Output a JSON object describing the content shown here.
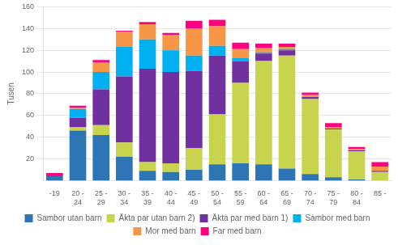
{
  "chart_data": {
    "type": "bar",
    "stacked": true,
    "categories": [
      "-19",
      "20 -\n24",
      "25 -\n29",
      "30 -\n34",
      "35 -\n39",
      "40 -\n44",
      "45 -\n49",
      "50 -\n54",
      "55 -\n59",
      "60 -\n64",
      "65 -\n69",
      "70 -\n74",
      "75 -\n79",
      "80 -\n84",
      "85 -"
    ],
    "series": [
      {
        "name": "Sambor utan barn",
        "color": "#2E75B6",
        "values": [
          4,
          46,
          42,
          22,
          9,
          8,
          10,
          15,
          16,
          15,
          11,
          6,
          3,
          1,
          0
        ]
      },
      {
        "name": "Äkta par utan barn 2)",
        "color": "#C9D44E",
        "values": [
          0,
          3,
          9,
          13,
          8,
          8,
          20,
          46,
          74,
          95,
          104,
          69,
          44,
          26,
          8
        ]
      },
      {
        "name": "Äkta par med barn 1)",
        "color": "#7030A0",
        "values": [
          0,
          9,
          33,
          61,
          86,
          84,
          71,
          54,
          20,
          7,
          5,
          2,
          1,
          1,
          1
        ]
      },
      {
        "name": "Sambor med barn",
        "color": "#00B0F0",
        "values": [
          0,
          8,
          16,
          27,
          27,
          20,
          14,
          9,
          3,
          1,
          1,
          0,
          0,
          0,
          0
        ]
      },
      {
        "name": "Mor med barn",
        "color": "#F79646",
        "values": [
          0,
          1,
          9,
          14,
          14,
          14,
          25,
          18,
          8,
          4,
          2,
          2,
          1,
          1,
          4
        ]
      },
      {
        "name": "Far med barn",
        "color": "#FF0080",
        "values": [
          3,
          2,
          2,
          1,
          2,
          2,
          7,
          6,
          6,
          4,
          3,
          2,
          4,
          2,
          4
        ]
      }
    ],
    "ylabel": "Tusen",
    "ylim": [
      0,
      160
    ],
    "yticks": [
      20,
      40,
      60,
      80,
      100,
      120,
      140,
      160
    ],
    "grid": true,
    "legend": "bottom"
  }
}
